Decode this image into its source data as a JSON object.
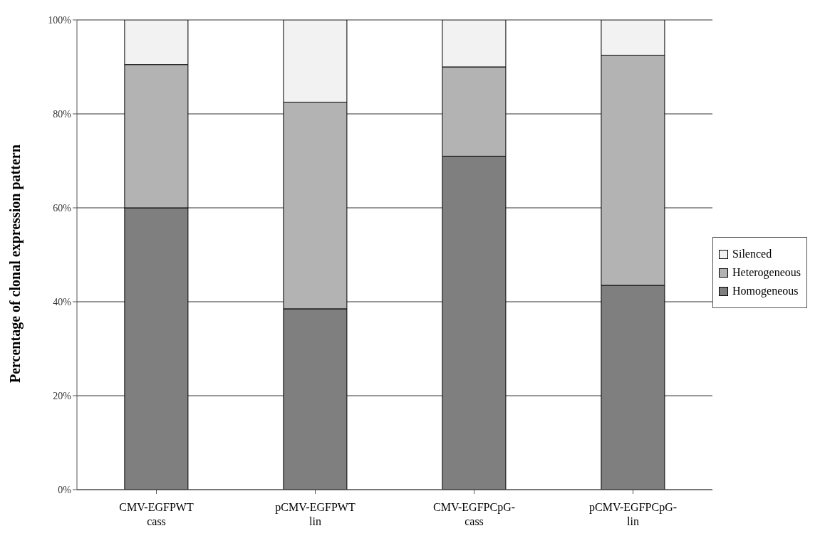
{
  "chart_data": {
    "type": "bar",
    "stacked": true,
    "ylabel": "Percentage of clonal expression pattern",
    "categories": [
      "CMV-EGFPWT\ncass",
      "pCMV-EGFPWT\nlin",
      "CMV-EGFPCpG-\ncass",
      "pCMV-EGFPCpG-\nlin"
    ],
    "series": [
      {
        "name": "Homogeneous",
        "color": "#7f7f7f",
        "values": [
          60,
          38.5,
          71,
          43.5
        ]
      },
      {
        "name": "Heterogeneous",
        "color": "#b3b3b3",
        "values": [
          30.5,
          44,
          19,
          49
        ]
      },
      {
        "name": "Silenced",
        "color": "#f2f2f2",
        "values": [
          9.5,
          17.5,
          10,
          7.5
        ]
      }
    ],
    "ylim": [
      0,
      100
    ],
    "yticks": [
      {
        "value": 0,
        "label": "0%"
      },
      {
        "value": 20,
        "label": "20%"
      },
      {
        "value": 40,
        "label": "40%"
      },
      {
        "value": 60,
        "label": "60%"
      },
      {
        "value": 80,
        "label": "80%"
      },
      {
        "value": 100,
        "label": "100%"
      }
    ],
    "grid": "y",
    "legend": "right"
  }
}
